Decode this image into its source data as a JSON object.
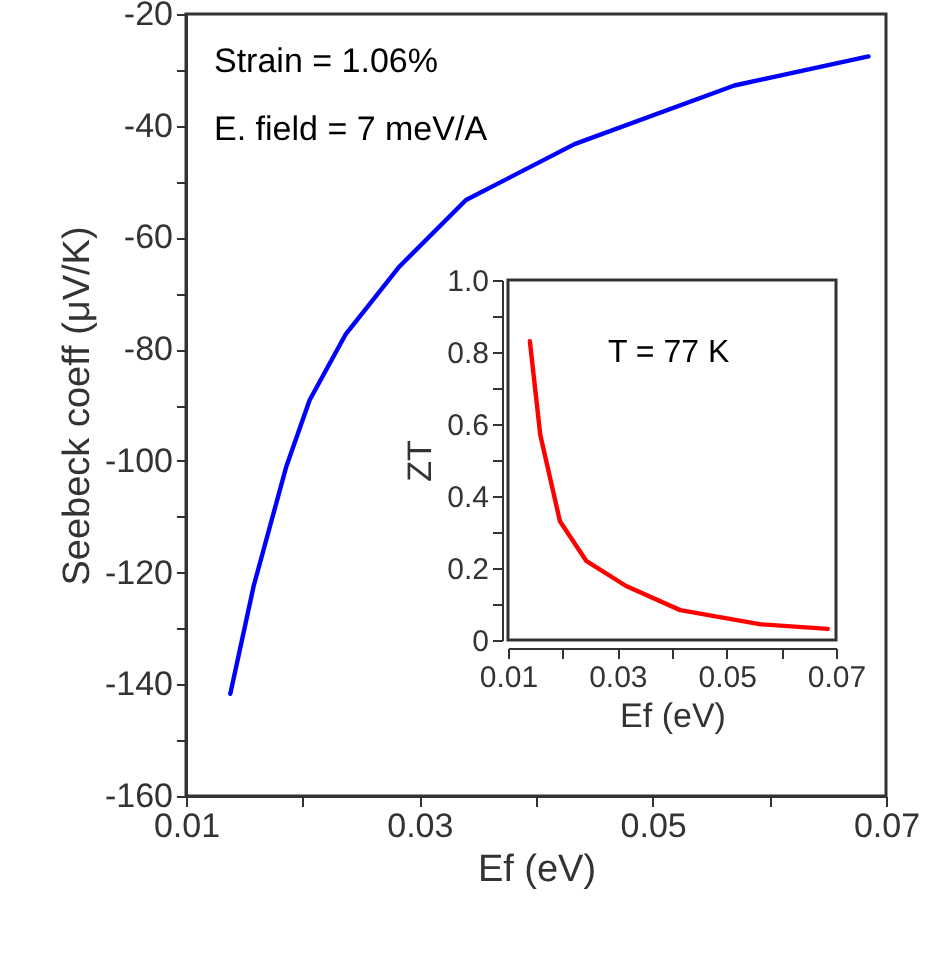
{
  "chart_data": [
    {
      "type": "line",
      "xlabel": "Ef (eV)",
      "ylabel": "Seebeck coeff (μV/K)",
      "grid": false,
      "annotations": [
        "Strain = 1.06%",
        "E. field = 7 meV/A"
      ],
      "xlim": [
        0.01,
        0.07
      ],
      "ylim": [
        -160,
        -20
      ],
      "xticks": [
        0.01,
        {
          "value": 0.02,
          "label": null
        },
        0.03,
        {
          "value": 0.04,
          "label": null
        },
        0.05,
        {
          "value": 0.06,
          "label": null
        },
        0.07
      ],
      "yticks": [
        -160,
        {
          "value": -150,
          "label": null
        },
        -140,
        {
          "value": -130,
          "label": null
        },
        -120,
        {
          "value": -110,
          "label": null
        },
        -100,
        {
          "value": -90,
          "label": null
        },
        -80,
        {
          "value": -70,
          "label": null
        },
        -60,
        {
          "value": -50,
          "label": null
        },
        -40,
        {
          "value": -30,
          "label": null
        },
        -20
      ],
      "series": [
        {
          "color": "#0000ff",
          "x": [
            0.0138,
            0.0158,
            0.0186,
            0.0206,
            0.0237,
            0.0283,
            0.034,
            0.0433,
            0.057,
            0.0685
          ],
          "values": [
            -141.7,
            -122.4,
            -101,
            -89.1,
            -77.3,
            -65.2,
            -53.3,
            -43.3,
            -32.8,
            -27.6
          ]
        }
      ]
    },
    {
      "type": "line",
      "xlabel": "Ef (eV)",
      "ylabel": "ZT",
      "grid": false,
      "annotations": [
        "T = 77 K"
      ],
      "xlim": [
        0.01,
        0.07
      ],
      "ylim": [
        0,
        1
      ],
      "xticks": [
        0.01,
        {
          "value": 0.02,
          "label": null
        },
        0.03,
        {
          "value": 0.04,
          "label": null
        },
        0.05,
        {
          "value": 0.06,
          "label": null
        },
        0.07
      ],
      "yticks": [
        0,
        {
          "value": 0.1,
          "label": null
        },
        0.2,
        {
          "value": 0.3,
          "label": null
        },
        0.4,
        {
          "value": 0.5,
          "label": null
        },
        0.6,
        {
          "value": 0.7,
          "label": null
        },
        0.8,
        {
          "value": 0.9,
          "label": null
        },
        {
          "value": 1,
          "label": "1.0"
        }
      ],
      "series": [
        {
          "color": "#ff0000",
          "x": [
            0.014,
            0.0159,
            0.0195,
            0.0243,
            0.0316,
            0.0415,
            0.056,
            0.0685
          ],
          "values": [
            0.83,
            0.57,
            0.33,
            0.22,
            0.15,
            0.083,
            0.044,
            0.031
          ]
        }
      ]
    }
  ]
}
